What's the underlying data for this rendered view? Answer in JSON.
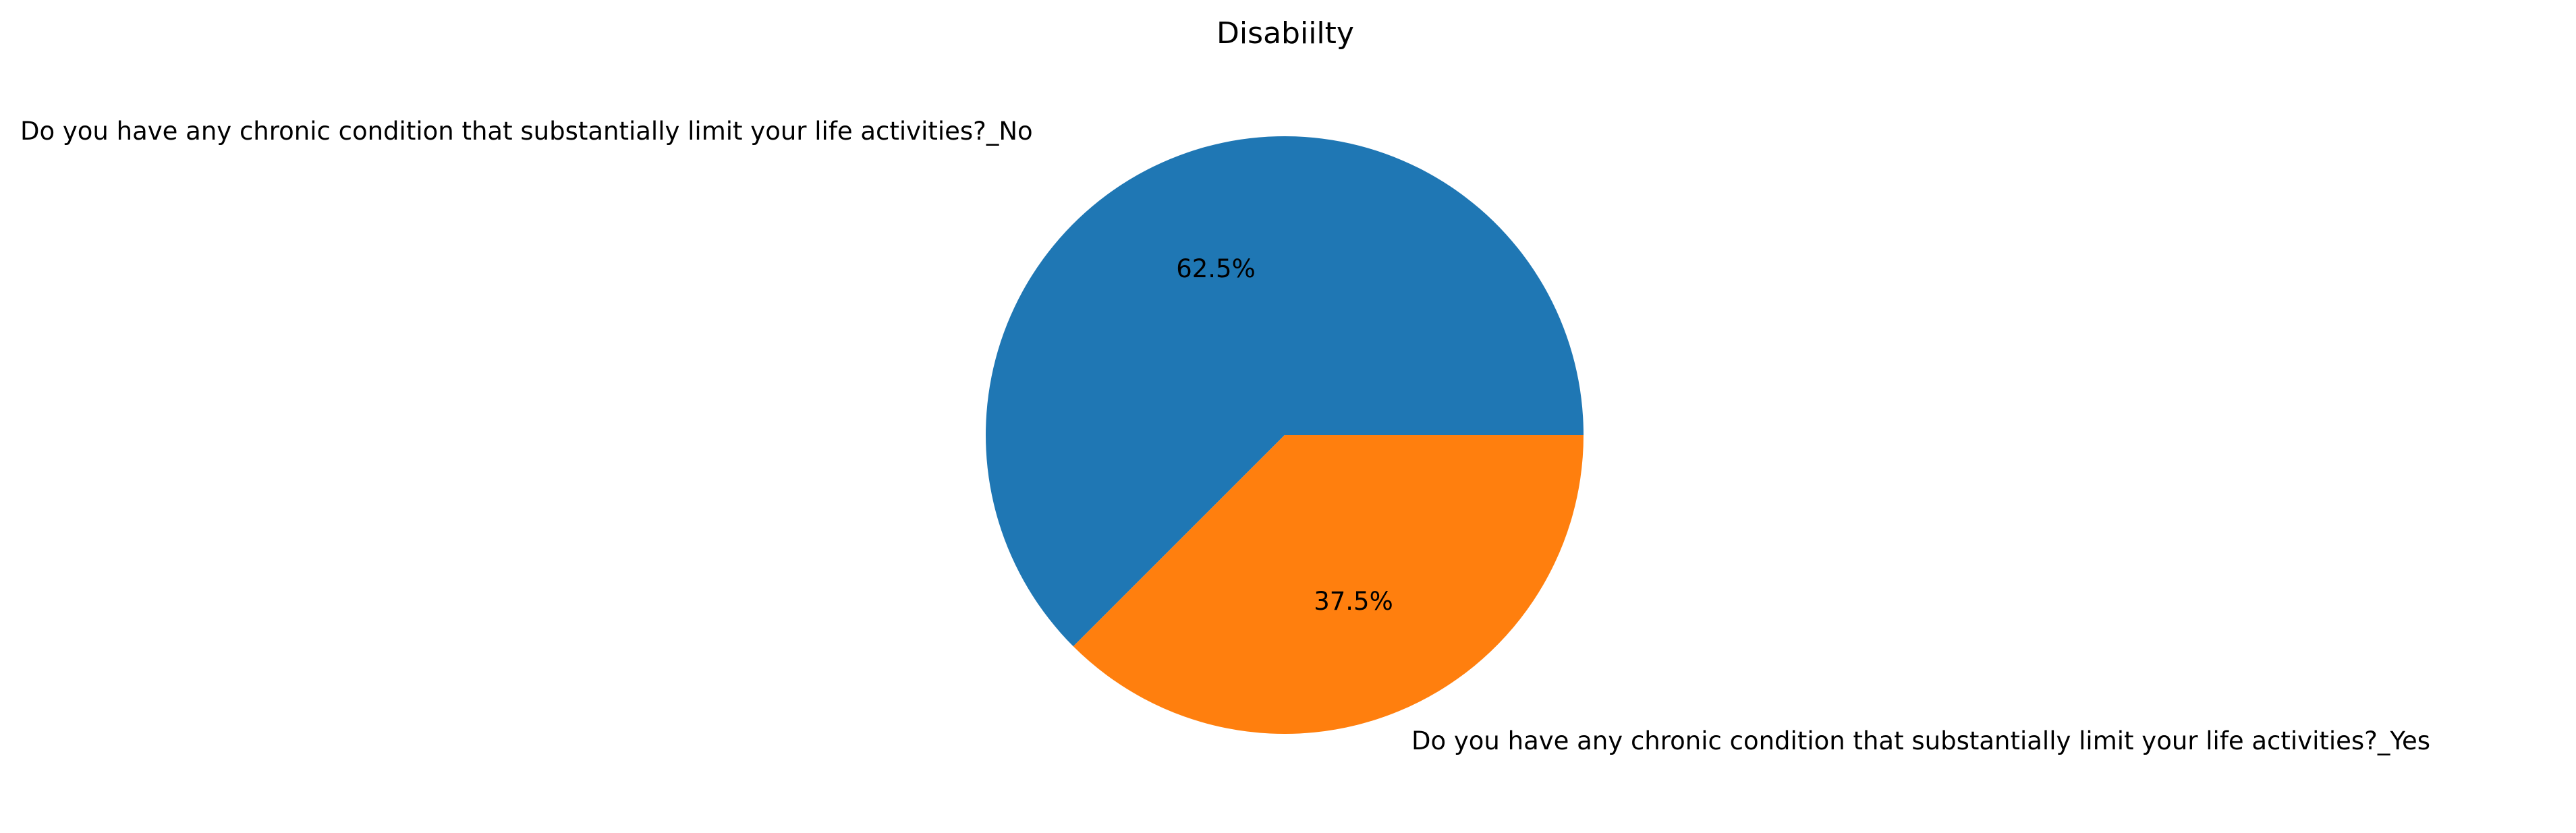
{
  "chart_data": {
    "type": "pie",
    "title": "Disabiilty",
    "categories": [
      "Do you have any chronic condition that substantially limit your life activities?_No",
      "Do you have any chronic condition that substantially limit your life activities?_Yes"
    ],
    "values": [
      62.5,
      37.5
    ],
    "value_labels": [
      "62.5%",
      "37.5%"
    ],
    "colors": [
      "#1f77b4",
      "#ff7f0e"
    ],
    "start_angle_deg": 0,
    "direction": "counterclockwise"
  }
}
